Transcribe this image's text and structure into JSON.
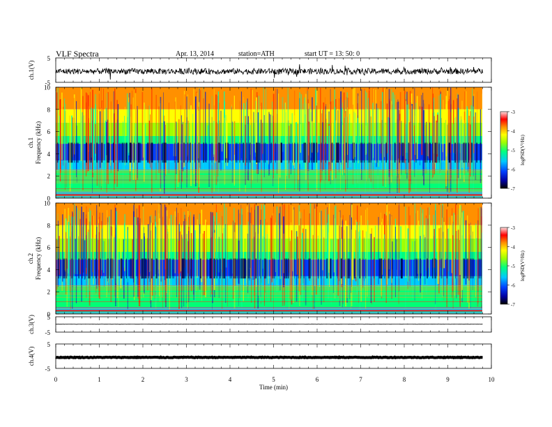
{
  "header": {
    "title": "VLF  Spectra",
    "date": "Apr. 13,  2014",
    "station": "station=ATH",
    "start": "start  UT  =   13: 50: 0"
  },
  "chart_data": [
    {
      "type": "line",
      "panel": "ch1-waveform",
      "ylabel": "ch.1(V)",
      "ylim": [
        -5,
        5
      ],
      "yticks": [
        "5",
        "-5"
      ],
      "x": [
        0,
        9.8
      ],
      "values_description_free": true,
      "baseline": -0.5,
      "amplitude": 1.2
    },
    {
      "type": "heatmap",
      "panel": "ch1-spectrogram",
      "ylabel_lines": [
        "ch.1",
        "Frequency  (kHz)"
      ],
      "ylim": [
        0,
        10
      ],
      "yticks": [
        "0",
        "2",
        "4",
        "6",
        "8",
        "10"
      ],
      "xlim": [
        0,
        9.8
      ],
      "colorbar": {
        "label": "logPSD(V²/Hz)",
        "ticks": [
          "-3",
          "-4",
          "-5",
          "-6",
          "-7"
        ],
        "range": [
          -7,
          -3
        ]
      }
    },
    {
      "type": "heatmap",
      "panel": "ch2-spectrogram",
      "ylabel_lines": [
        "ch.2",
        "Frequency  (kHz)"
      ],
      "ylim": [
        0,
        10
      ],
      "yticks": [
        "0",
        "2",
        "4",
        "6",
        "8",
        "10"
      ],
      "xlim": [
        0,
        9.8
      ],
      "colorbar": {
        "label": "logPSD(V²/Hz)",
        "ticks": [
          "-3",
          "-4",
          "-5",
          "-6",
          "-7"
        ],
        "range": [
          -7,
          -3
        ]
      }
    },
    {
      "type": "line",
      "panel": "ch3-waveform",
      "ylabel": "ch.3(V)",
      "ylim": [
        -5,
        5
      ],
      "yticks": [
        "5",
        "-5"
      ],
      "baseline": 0.2,
      "amplitude": 0.1
    },
    {
      "type": "line",
      "panel": "ch4-waveform",
      "ylabel": "ch.4(V)",
      "ylim": [
        -5,
        5
      ],
      "yticks": [
        "5",
        "-5"
      ],
      "baseline": -0.5,
      "amplitude": 0.15
    }
  ],
  "xaxis": {
    "label": "Time  (min)",
    "ticks": [
      "0",
      "1",
      "2",
      "3",
      "4",
      "5",
      "6",
      "7",
      "8",
      "9",
      "10"
    ],
    "xlim": [
      0,
      10
    ]
  },
  "colors": {
    "cmap": [
      "#000000",
      "#0000a0",
      "#0040ff",
      "#00c8ff",
      "#00ff80",
      "#a0ff00",
      "#ffff00",
      "#ff9000",
      "#ff0000",
      "#ffb0b0"
    ]
  }
}
